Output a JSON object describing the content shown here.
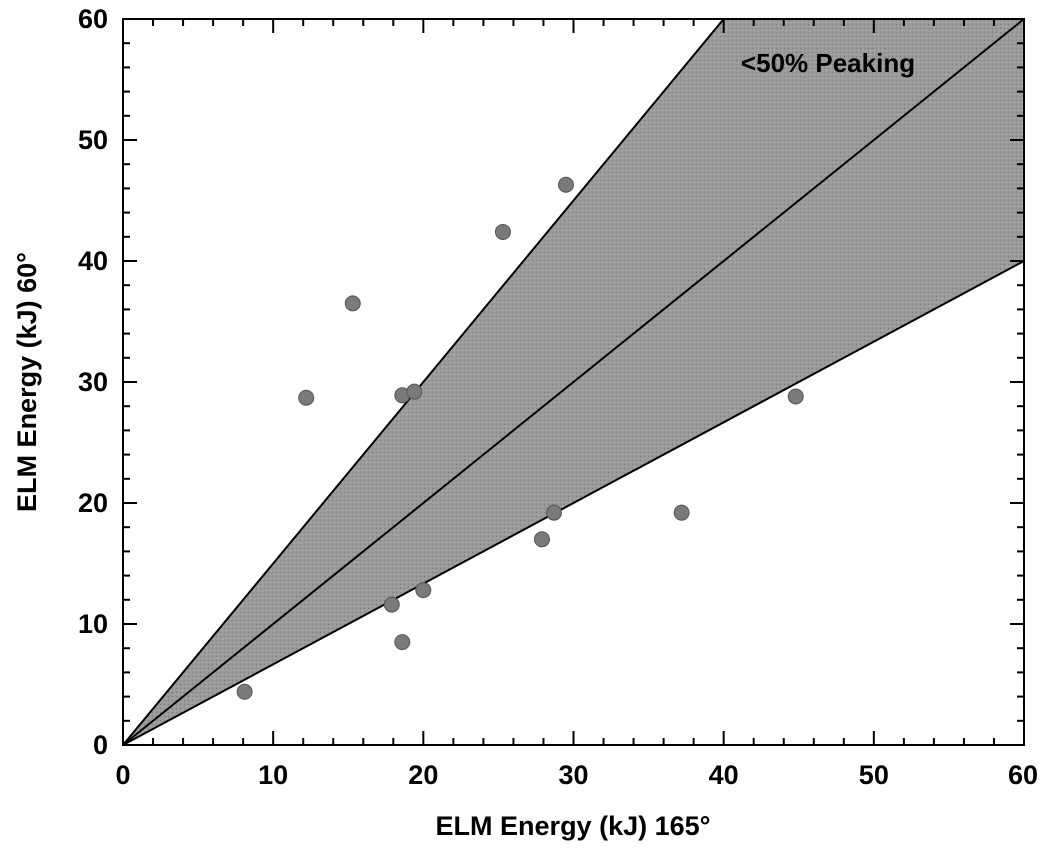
{
  "chart_data": {
    "type": "scatter",
    "xlabel": "ELM Energy (kJ) 165°",
    "ylabel": "ELM Energy (kJ) 60°",
    "xlim": [
      0,
      60
    ],
    "ylim": [
      0,
      60
    ],
    "x_ticks": [
      "0",
      "10",
      "20",
      "30",
      "40",
      "50",
      "60"
    ],
    "y_ticks": [
      "0",
      "10",
      "20",
      "30",
      "40",
      "50",
      "60"
    ],
    "grid": false,
    "annotation": "<50% Peaking",
    "reference_lines": [
      {
        "role": "upper-bound",
        "slope": 1.5
      },
      {
        "role": "equality",
        "slope": 1.0
      },
      {
        "role": "lower-bound",
        "slope": 0.6667
      }
    ],
    "band_fill_color": "#9a9a9a",
    "point_color": "#7a7a7a",
    "points": [
      {
        "x": 8.1,
        "y": 4.4
      },
      {
        "x": 12.2,
        "y": 28.7
      },
      {
        "x": 15.3,
        "y": 36.5
      },
      {
        "x": 17.9,
        "y": 11.6
      },
      {
        "x": 18.6,
        "y": 8.5
      },
      {
        "x": 18.6,
        "y": 28.9
      },
      {
        "x": 19.4,
        "y": 29.2
      },
      {
        "x": 20.0,
        "y": 12.8
      },
      {
        "x": 25.3,
        "y": 42.4
      },
      {
        "x": 27.9,
        "y": 17.0
      },
      {
        "x": 28.7,
        "y": 19.2
      },
      {
        "x": 29.5,
        "y": 46.3
      },
      {
        "x": 37.2,
        "y": 19.2
      },
      {
        "x": 44.8,
        "y": 28.8
      }
    ]
  }
}
